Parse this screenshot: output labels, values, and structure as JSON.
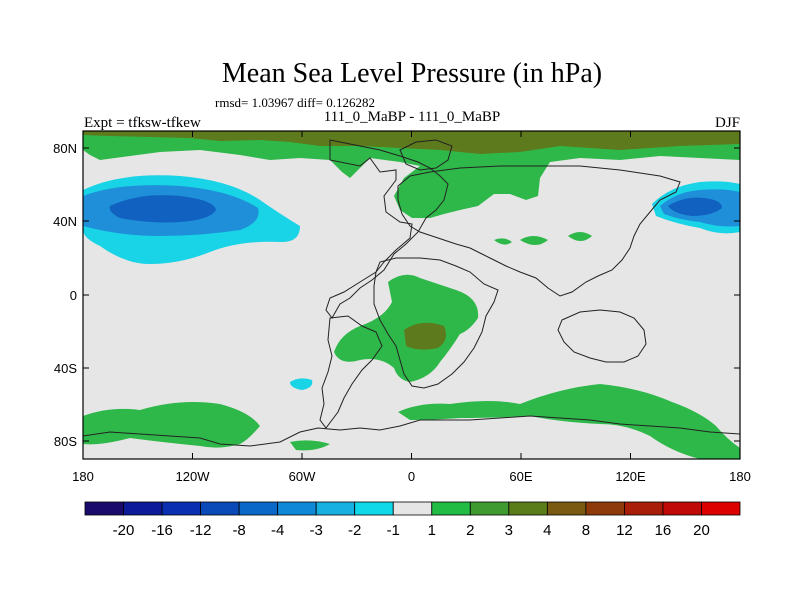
{
  "title": "Mean Sea Level Pressure (in hPa)",
  "stats": "rmsd= 1.03967 diff= 0.126282",
  "left_label": "Expt = tfksw-tfkew",
  "center_label": "111_0_MaBP - 111_0_MaBP",
  "right_label": "DJF",
  "axes": {
    "x_ticks": [
      "180",
      "120W",
      "60W",
      "0",
      "60E",
      "120E",
      "180"
    ],
    "y_ticks": [
      "80N",
      "40N",
      "0",
      "40S",
      "80S"
    ]
  },
  "colorbar": {
    "labels": [
      "-20",
      "-16",
      "-12",
      "-8",
      "-4",
      "-3",
      "-2",
      "-1",
      "1",
      "2",
      "3",
      "4",
      "8",
      "12",
      "16",
      "20"
    ],
    "colors": [
      "#1a0a6b",
      "#0d1a9a",
      "#0a2fb0",
      "#0a49b8",
      "#0a68c8",
      "#1088d8",
      "#18b0e0",
      "#10d8e8",
      "#e6e6e6",
      "#22bb44",
      "#3f9a30",
      "#5a7d1a",
      "#7a5a10",
      "#8e3a0a",
      "#a81e08",
      "#c00a08",
      "#dc0000"
    ]
  },
  "palette": {
    "neutral": "#e6e6e6",
    "green": "#2fb84a",
    "olive": "#5d7a1c",
    "cyan": "#19d3e6",
    "blue1": "#1e8fd8",
    "blue2": "#1161c0"
  }
}
